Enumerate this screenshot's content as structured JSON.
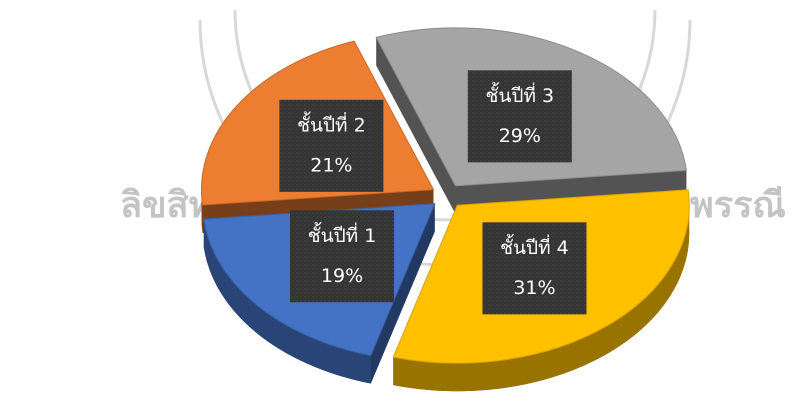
{
  "chart_data": {
    "type": "pie",
    "categories": [
      "ชั้นปีที่ 1",
      "ชั้นปีที่ 2",
      "ชั้นปีที่ 3",
      "ชั้นปีที่ 4"
    ],
    "values": [
      19,
      21,
      29,
      31
    ],
    "value_labels": [
      "19%",
      "21%",
      "29%",
      "31%"
    ],
    "colors": [
      "#4472c4",
      "#ed7d31",
      "#a5a5a5",
      "#ffc000"
    ],
    "watermark": [
      "ลิขสิทธิ์ขอ",
      "พรรณี"
    ]
  }
}
